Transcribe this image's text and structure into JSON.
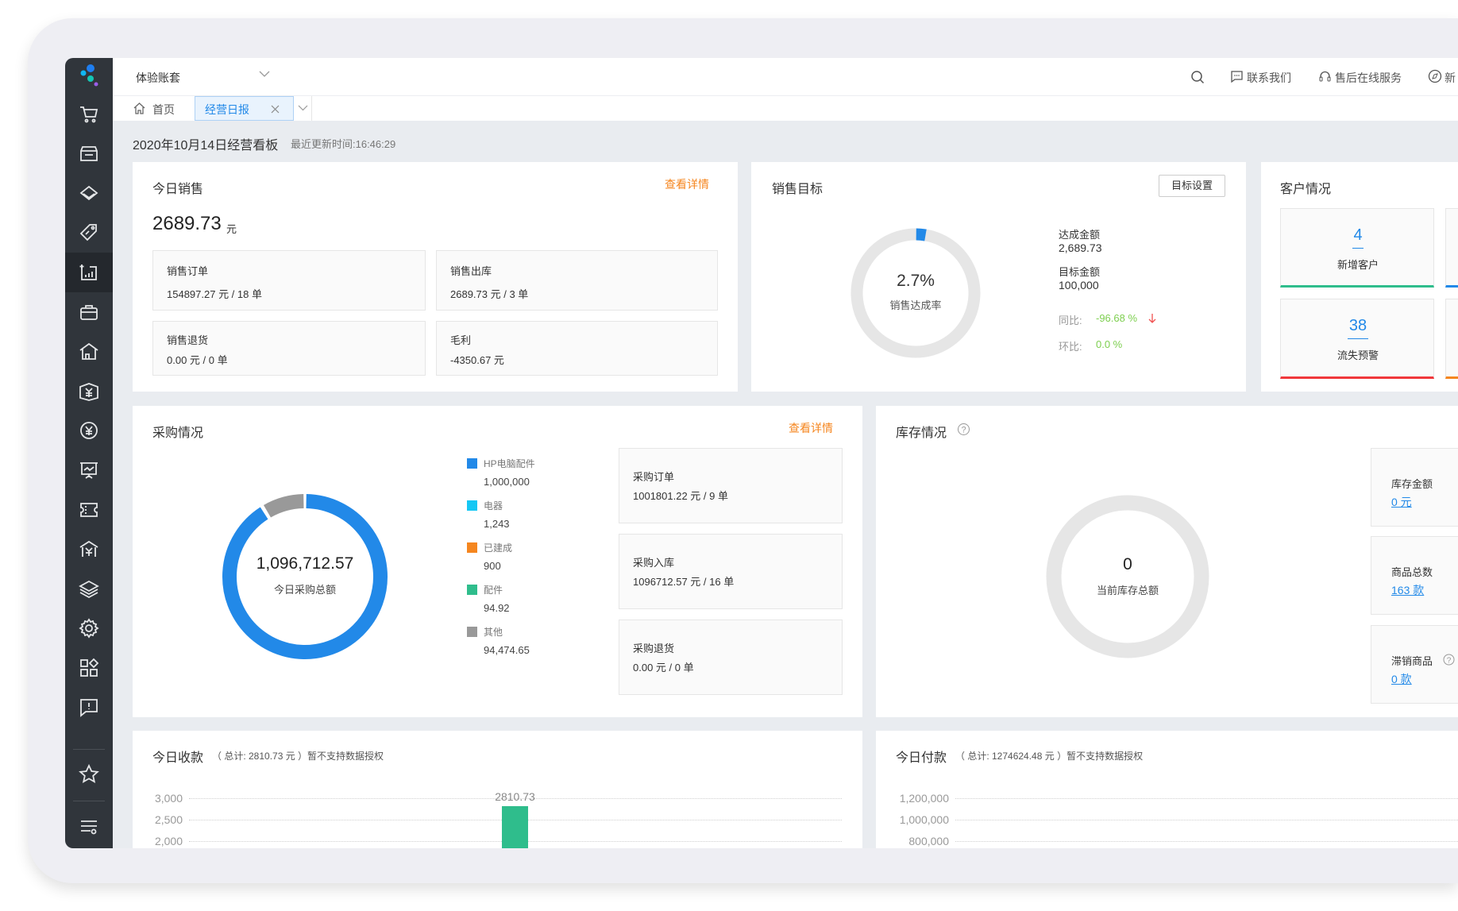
{
  "header": {
    "account": "体验账套",
    "contact": "联系我们",
    "service": "售后在线服务",
    "more": "新"
  },
  "tabs": [
    {
      "label": "首页"
    },
    {
      "label": "经营日报"
    }
  ],
  "page": {
    "title": "2020年10月14日经营看板",
    "updated": "最近更新时间:16:46:29"
  },
  "sales": {
    "title": "今日销售",
    "detail": "查看详情",
    "amount": "2689.73",
    "unit": "元",
    "tiles": [
      {
        "label": "销售订单",
        "value": "154897.27 元 / 18 单"
      },
      {
        "label": "销售出库",
        "value": "2689.73 元 / 3 单"
      },
      {
        "label": "销售退货",
        "value": "0.00 元 / 0 单"
      },
      {
        "label": "毛利",
        "value": "-4350.67 元"
      }
    ]
  },
  "target": {
    "title": "销售目标",
    "button": "目标设置",
    "rate": "2.7%",
    "rate_value": 2.7,
    "rate_label": "销售达成率",
    "achieved_label": "达成金额",
    "achieved": "2,689.73",
    "goal_label": "目标金额",
    "goal": "100,000",
    "yoy_label": "同比:",
    "yoy": "-96.68 %",
    "mom_label": "环比:",
    "mom": "0.0 %",
    "colors": {
      "fill": "#2289e8",
      "track": "#e6e6e6",
      "up": "#7dcf4f",
      "down": "#f0504f"
    }
  },
  "customers": {
    "title": "客户情况",
    "tiles": [
      {
        "value": "4",
        "label": "新增客户",
        "color": "#2fbd8c"
      },
      {
        "value": "38",
        "label": "流失预警",
        "color": "#f0373b"
      }
    ],
    "hidden_colors": [
      "#2289e8",
      "#f5861f"
    ]
  },
  "purchase": {
    "title": "采购情况",
    "detail": "查看详情",
    "total": "1,096,712.57",
    "total_label": "今日采购总额",
    "legend": [
      {
        "name": "HP电脑配件",
        "value": "1,000,000",
        "color": "#2289e8"
      },
      {
        "name": "电器",
        "value": "1,243",
        "color": "#15c7f4"
      },
      {
        "name": "已建成",
        "value": "900",
        "color": "#f5861f"
      },
      {
        "name": "配件",
        "value": "94.92",
        "color": "#2fbd8c"
      },
      {
        "name": "其他",
        "value": "94,474.65",
        "color": "#999999"
      }
    ],
    "tiles": [
      {
        "label": "采购订单",
        "value": "1001801.22 元 / 9 单"
      },
      {
        "label": "采购入库",
        "value": "1096712.57 元 / 16 单"
      },
      {
        "label": "采购退货",
        "value": "0.00 元 / 0 单"
      }
    ]
  },
  "inventory": {
    "title": "库存情况",
    "total": "0",
    "total_label": "当前库存总额",
    "tiles": [
      {
        "label": "库存金额",
        "value": "0 元"
      },
      {
        "label": "商品总数",
        "value": "163 款"
      },
      {
        "label": "滞销商品",
        "value": "0 款"
      }
    ]
  },
  "receipts": {
    "title": "今日收款",
    "summary": "（ 总计:  2810.73 元 ）暂不支持数据授权"
  },
  "payments": {
    "title": "今日付款",
    "summary": "（ 总计:  1274624.48 元 ）暂不支持数据授权"
  },
  "chart_data": [
    {
      "type": "pie",
      "name": "采购情况",
      "categories": [
        "HP电脑配件",
        "电器",
        "已建成",
        "配件",
        "其他"
      ],
      "values": [
        1000000,
        1243,
        900,
        94.92,
        94474.65
      ]
    },
    {
      "type": "bar",
      "name": "今日收款",
      "ylim": [
        2000,
        3000
      ],
      "yticks": [
        "3,000",
        "2,500",
        "2,000"
      ],
      "ytick_values": [
        3000,
        2500,
        2000
      ],
      "values": [
        2810.73
      ],
      "data_labels": [
        "2810.73"
      ],
      "color": "#2fbd8c",
      "grid": true
    },
    {
      "type": "bar",
      "name": "今日付款",
      "ylim": [
        800000,
        1200000
      ],
      "yticks": [
        "1,200,000",
        "1,000,000",
        "800,000"
      ],
      "ytick_values": [
        1200000,
        1000000,
        800000
      ],
      "values": [],
      "grid": true
    }
  ]
}
